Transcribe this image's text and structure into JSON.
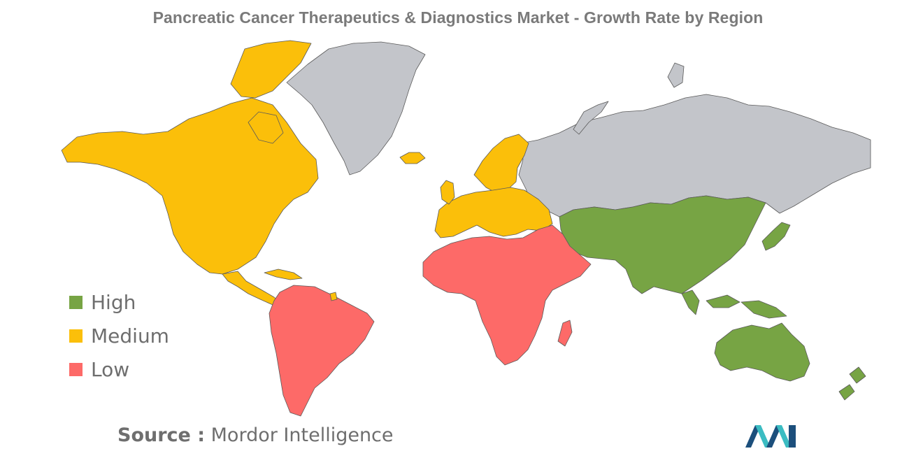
{
  "title": "Pancreatic Cancer Therapeutics & Diagnostics Market - Growth Rate by Region",
  "colors": {
    "high": "#77a444",
    "medium": "#fbbf0a",
    "low": "#fd6a68",
    "no_data": "#c3c5ca",
    "title": "#7a7a7a",
    "logo_dark": "#1c4f7c",
    "logo_teal": "#3bbcc2"
  },
  "legend": [
    {
      "label": "High",
      "color": "#77a444"
    },
    {
      "label": "Medium",
      "color": "#fbbf0a"
    },
    {
      "label": "Low",
      "color": "#fd6a68"
    }
  ],
  "regions": [
    {
      "name": "North America",
      "level": "Medium"
    },
    {
      "name": "Europe",
      "level": "Medium"
    },
    {
      "name": "Asia-Pacific",
      "level": "High"
    },
    {
      "name": "South America",
      "level": "Low"
    },
    {
      "name": "Middle East and Africa",
      "level": "Low"
    }
  ],
  "source": {
    "label": "Source :",
    "value": "Mordor Intelligence"
  },
  "logo": {
    "icon": "mordor-intelligence-logo"
  }
}
